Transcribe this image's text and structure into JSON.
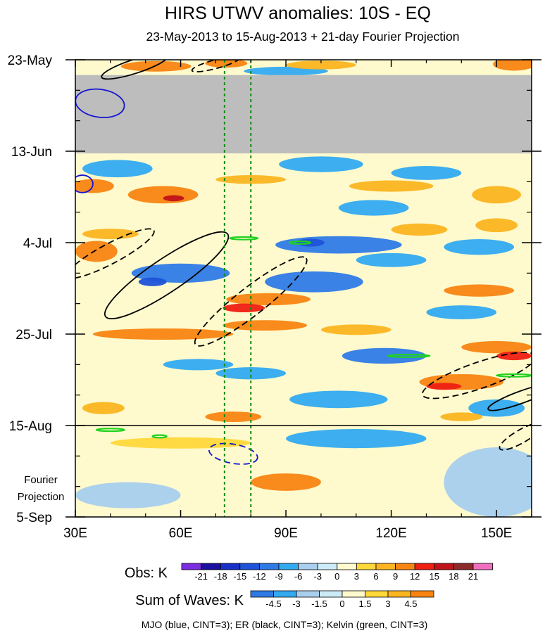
{
  "chart_data": {
    "type": "heatmap",
    "title": "HIRS UTWV anomalies: 10S - EQ",
    "subtitle": "23-May-2013 to 15-Aug-2013 + 21-day Fourier Projection",
    "x_axis": {
      "range": [
        30,
        160
      ],
      "ticks": [
        30,
        60,
        90,
        120,
        150
      ],
      "tick_labels": [
        "30E",
        "60E",
        "90E",
        "120E",
        "150E"
      ]
    },
    "y_axis": {
      "range_days": [
        0,
        105
      ],
      "ticks": [
        0,
        21,
        42,
        63,
        84,
        105
      ],
      "tick_labels": [
        "23-May",
        "13-Jun",
        "4-Jul",
        "25-Jul",
        "15-Aug",
        "5-Sep"
      ],
      "projection_label_line1": "Fourier",
      "projection_label_line2": "Projection"
    },
    "observation_end_day": 84,
    "missing_data_band_days": [
      3.5,
      21.5
    ],
    "reference_longitudes": [
      72.5,
      80
    ],
    "obs_colorbar": {
      "label": "Obs: K",
      "levels": [
        -21,
        -18,
        -15,
        -12,
        -9,
        -6,
        -3,
        0,
        3,
        6,
        9,
        12,
        15,
        18,
        21
      ],
      "colors": [
        "#7b2de0",
        "#1a0fa0",
        "#1830c8",
        "#1f53d9",
        "#2f7be6",
        "#33aaf0",
        "#a8cfee",
        "#cdebf7",
        "#fffacd",
        "#ffd83a",
        "#fbb520",
        "#f88512",
        "#ef1f12",
        "#c1131a",
        "#8f2a2a",
        "#f06fc0"
      ]
    },
    "waves_colorbar": {
      "label": "Sum of Waves: K",
      "levels": [
        -4.5,
        -3,
        -1.5,
        0,
        1.5,
        3,
        4.5
      ],
      "colors": [
        "#2f7be6",
        "#33aaf0",
        "#a8cfee",
        "#cdebf7",
        "#fffacd",
        "#ffd83a",
        "#fbb520",
        "#f88512"
      ]
    },
    "legend_text": "MJO (blue, CINT=3); ER (black, CINT=3); Kelvin (green, CINT=3)",
    "positive_blobs": [
      {
        "lon": 53,
        "day": 1.5,
        "rx": 10,
        "ry": 1.2,
        "level": 3
      },
      {
        "lon": 73,
        "day": 0.8,
        "rx": 6,
        "ry": 1,
        "level": 3
      },
      {
        "lon": 100,
        "day": 1.2,
        "rx": 10,
        "ry": 1,
        "level": 2
      },
      {
        "lon": 155,
        "day": 1.0,
        "rx": 6,
        "ry": 1.5,
        "level": 3
      },
      {
        "lon": 35,
        "day": 29,
        "rx": 6,
        "ry": 1.6,
        "level": 3
      },
      {
        "lon": 55,
        "day": 31,
        "rx": 10,
        "ry": 2.0,
        "level": 3
      },
      {
        "lon": 58,
        "day": 31.8,
        "rx": 3,
        "ry": 0.7,
        "level": 5
      },
      {
        "lon": 80,
        "day": 27.5,
        "rx": 10,
        "ry": 1.0,
        "level": 2
      },
      {
        "lon": 120,
        "day": 29,
        "rx": 12,
        "ry": 1.3,
        "level": 2
      },
      {
        "lon": 150,
        "day": 31,
        "rx": 7,
        "ry": 2.0,
        "level": 2
      },
      {
        "lon": 36,
        "day": 44,
        "rx": 6,
        "ry": 2.4,
        "level": 3
      },
      {
        "lon": 40,
        "day": 40,
        "rx": 8,
        "ry": 1.2,
        "level": 2
      },
      {
        "lon": 128,
        "day": 39,
        "rx": 8,
        "ry": 1.4,
        "level": 2
      },
      {
        "lon": 150,
        "day": 38,
        "rx": 6,
        "ry": 1.6,
        "level": 2
      },
      {
        "lon": 85,
        "day": 55,
        "rx": 12,
        "ry": 1.4,
        "level": 3
      },
      {
        "lon": 78,
        "day": 57,
        "rx": 6,
        "ry": 1.0,
        "level": 4
      },
      {
        "lon": 145,
        "day": 53,
        "rx": 10,
        "ry": 1.4,
        "level": 3
      },
      {
        "lon": 55,
        "day": 63,
        "rx": 20,
        "ry": 1.3,
        "level": 3
      },
      {
        "lon": 84,
        "day": 61,
        "rx": 12,
        "ry": 1.2,
        "level": 3
      },
      {
        "lon": 110,
        "day": 62,
        "rx": 10,
        "ry": 1.2,
        "level": 2
      },
      {
        "lon": 150,
        "day": 66,
        "rx": 10,
        "ry": 1.4,
        "level": 3
      },
      {
        "lon": 140,
        "day": 74,
        "rx": 12,
        "ry": 1.8,
        "level": 3
      },
      {
        "lon": 135,
        "day": 75,
        "rx": 5,
        "ry": 0.8,
        "level": 4
      },
      {
        "lon": 155,
        "day": 68,
        "rx": 5,
        "ry": 1.0,
        "level": 4
      },
      {
        "lon": 38,
        "day": 80,
        "rx": 6,
        "ry": 1.4,
        "level": 2
      },
      {
        "lon": 75,
        "day": 82,
        "rx": 8,
        "ry": 1.2,
        "level": 3
      },
      {
        "lon": 140,
        "day": 82,
        "rx": 6,
        "ry": 1.0,
        "level": 2
      },
      {
        "lon": 90,
        "day": 97,
        "rx": 10,
        "ry": 2.0,
        "level": 3
      },
      {
        "lon": 60,
        "day": 88,
        "rx": 20,
        "ry": 1.3,
        "level": 1
      }
    ],
    "negative_blobs": [
      {
        "lon": 90,
        "day": 2.6,
        "rx": 12,
        "ry": 1.0,
        "level": 2
      },
      {
        "lon": 42,
        "day": 25,
        "rx": 10,
        "ry": 2.0,
        "level": 2
      },
      {
        "lon": 100,
        "day": 24,
        "rx": 12,
        "ry": 1.8,
        "level": 2
      },
      {
        "lon": 130,
        "day": 26,
        "rx": 10,
        "ry": 1.6,
        "level": 2
      },
      {
        "lon": 115,
        "day": 34,
        "rx": 10,
        "ry": 1.8,
        "level": 2
      },
      {
        "lon": 105,
        "day": 42.5,
        "rx": 18,
        "ry": 2.0,
        "level": 3
      },
      {
        "lon": 97,
        "day": 42,
        "rx": 4,
        "ry": 0.9,
        "level": 4
      },
      {
        "lon": 145,
        "day": 43,
        "rx": 10,
        "ry": 1.8,
        "level": 2
      },
      {
        "lon": 60,
        "day": 49,
        "rx": 14,
        "ry": 2.2,
        "level": 3
      },
      {
        "lon": 52,
        "day": 51,
        "rx": 4,
        "ry": 1.0,
        "level": 4
      },
      {
        "lon": 98,
        "day": 51,
        "rx": 14,
        "ry": 2.4,
        "level": 3
      },
      {
        "lon": 120,
        "day": 46,
        "rx": 10,
        "ry": 1.6,
        "level": 2
      },
      {
        "lon": 140,
        "day": 58,
        "rx": 10,
        "ry": 1.6,
        "level": 2
      },
      {
        "lon": 118,
        "day": 68,
        "rx": 12,
        "ry": 1.8,
        "level": 3
      },
      {
        "lon": 80,
        "day": 72,
        "rx": 10,
        "ry": 1.4,
        "level": 2
      },
      {
        "lon": 150,
        "day": 80,
        "rx": 8,
        "ry": 2.0,
        "level": 2
      },
      {
        "lon": 105,
        "day": 78,
        "rx": 14,
        "ry": 2.0,
        "level": 2
      },
      {
        "lon": 65,
        "day": 70,
        "rx": 10,
        "ry": 1.3,
        "level": 2
      },
      {
        "lon": 110,
        "day": 87,
        "rx": 20,
        "ry": 2.2,
        "level": 2
      },
      {
        "lon": 150,
        "day": 97,
        "rx": 15,
        "ry": 8.0,
        "level": 1
      },
      {
        "lon": 45,
        "day": 100,
        "rx": 15,
        "ry": 3.0,
        "level": 1
      }
    ],
    "contours": [
      {
        "wave": "MJO",
        "sign": "positive",
        "lon": 37,
        "day": 10,
        "rx": 7,
        "ry": 3.2,
        "angle": 8
      },
      {
        "wave": "MJO",
        "sign": "positive",
        "lon": 32,
        "day": 28.5,
        "rx": 3,
        "ry": 2.0,
        "angle": 0
      },
      {
        "wave": "MJO",
        "sign": "negative",
        "lon": 75,
        "day": 90.5,
        "rx": 7,
        "ry": 2.2,
        "angle": 10
      },
      {
        "wave": "ER",
        "sign": "positive",
        "lon": 47,
        "day": 1.5,
        "rx": 10,
        "ry": 1.6,
        "angle": -18
      },
      {
        "wave": "ER",
        "sign": "negative",
        "lon": 70,
        "day": 1.0,
        "rx": 7,
        "ry": 1.0,
        "angle": -15
      },
      {
        "wave": "ER",
        "sign": "negative",
        "lon": 40,
        "day": 44.5,
        "rx": 14,
        "ry": 2.3,
        "angle": -28
      },
      {
        "wave": "ER",
        "sign": "positive",
        "lon": 56,
        "day": 49.5,
        "rx": 21,
        "ry": 3.8,
        "angle": -34
      },
      {
        "wave": "ER",
        "sign": "negative",
        "lon": 80,
        "day": 55.5,
        "rx": 20,
        "ry": 3.2,
        "angle": -38
      },
      {
        "wave": "ER",
        "sign": "negative",
        "lon": 145,
        "day": 72.5,
        "rx": 17,
        "ry": 3.0,
        "angle": -19
      },
      {
        "wave": "ER",
        "sign": "positive",
        "lon": 157,
        "day": 77.5,
        "rx": 10,
        "ry": 1.4,
        "angle": -20
      },
      {
        "wave": "ER",
        "sign": "negative",
        "lon": 157,
        "day": 86.5,
        "rx": 7,
        "ry": 1.5,
        "angle": -30
      },
      {
        "wave": "Kelvin",
        "sign": "positive",
        "lon": 78,
        "day": 41,
        "rx": 4,
        "ry": 0.3,
        "angle": 0
      },
      {
        "wave": "Kelvin",
        "sign": "positive",
        "lon": 94,
        "day": 42,
        "rx": 3,
        "ry": 0.3,
        "angle": 0
      },
      {
        "wave": "Kelvin",
        "sign": "positive",
        "lon": 125,
        "day": 68,
        "rx": 6,
        "ry": 0.3,
        "angle": 0
      },
      {
        "wave": "Kelvin",
        "sign": "positive",
        "lon": 155,
        "day": 72.5,
        "rx": 5,
        "ry": 0.3,
        "angle": 0
      },
      {
        "wave": "Kelvin",
        "sign": "positive",
        "lon": 40,
        "day": 85,
        "rx": 4,
        "ry": 0.3,
        "angle": 0
      },
      {
        "wave": "Kelvin",
        "sign": "positive",
        "lon": 54,
        "day": 86.5,
        "rx": 2,
        "ry": 0.3,
        "angle": 0
      }
    ]
  }
}
